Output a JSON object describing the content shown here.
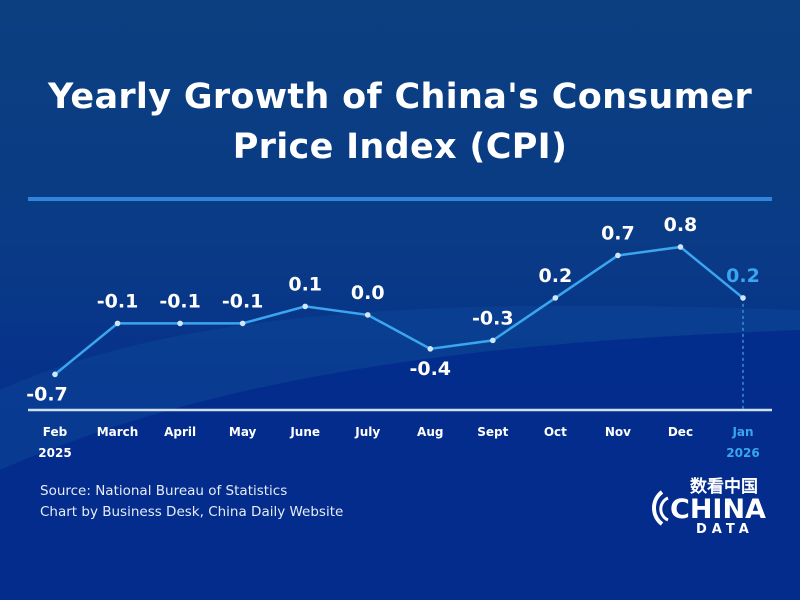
{
  "title": "Yearly Growth of China's Consumer Price Index (CPI)",
  "source": "Source: National Bureau of Statistics",
  "credit": "Chart by Business Desk, China Daily Website",
  "logo": {
    "chinese": "数看中国",
    "text1": "CHINA",
    "text2": "DATA"
  },
  "colors": {
    "line": "#3aa6f0",
    "highlight": "#3aa6f0",
    "text": "#ffffff",
    "axis": "#cfe0f5"
  },
  "chart_data": {
    "type": "line",
    "categories": [
      "Feb",
      "March",
      "April",
      "May",
      "June",
      "July",
      "Aug",
      "Sept",
      "Oct",
      "Nov",
      "Dec",
      "Jan"
    ],
    "year_labels": {
      "Feb": "2025",
      "Jan": "2026"
    },
    "values": [
      -0.7,
      -0.1,
      -0.1,
      -0.1,
      0.1,
      0.0,
      -0.4,
      -0.3,
      0.2,
      0.7,
      0.8,
      0.2
    ],
    "data_labels": [
      "-0.7",
      "-0.1",
      "-0.1",
      "-0.1",
      "0.1",
      "0.0",
      "-0.4",
      "-0.3",
      "0.2",
      "0.7",
      "0.8",
      "0.2"
    ],
    "highlighted": "Jan",
    "ylim": [
      -1.12,
      1.2
    ],
    "grid": false,
    "legend": "none"
  }
}
